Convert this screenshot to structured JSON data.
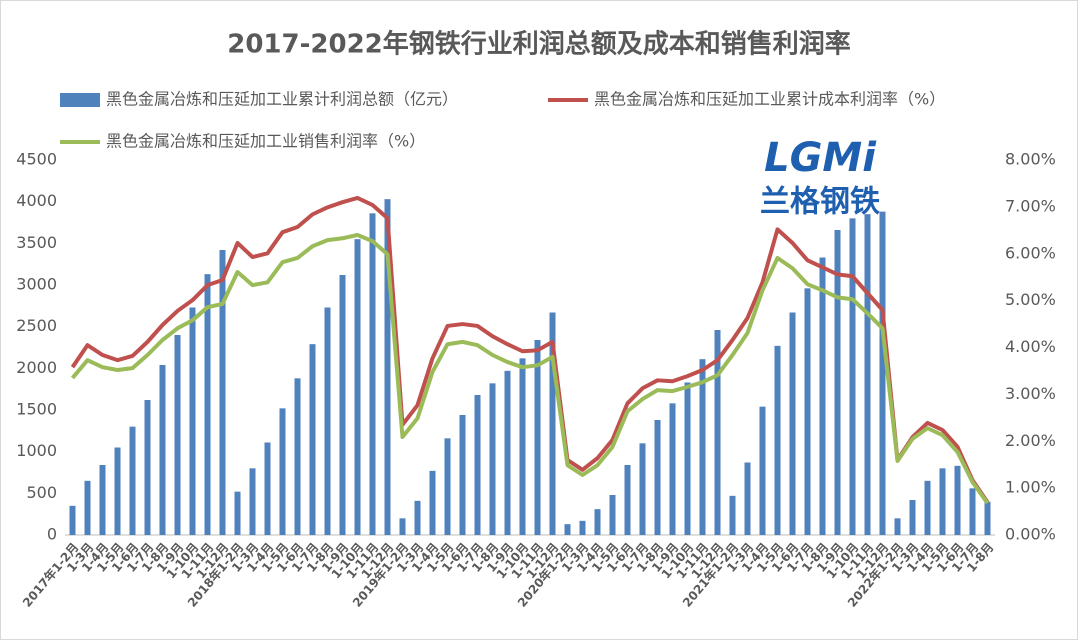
{
  "chart_data": {
    "type": "combo",
    "title": "2017-2022年钢铁行业利润总额及成本和销售利润率",
    "annotations": [
      "LGMi",
      "兰格钢铁"
    ],
    "legend": "top",
    "grid": false,
    "categories": [
      "2017年1-2月",
      "1-3月",
      "1-4月",
      "1-5月",
      "1-6月",
      "1-7月",
      "1-8月",
      "1-9月",
      "1-10月",
      "1-11月",
      "1-12月",
      "2018年1-2月",
      "1-3月",
      "1-4月",
      "1-5月",
      "1-6月",
      "1-7月",
      "1-8月",
      "1-9月",
      "1-10月",
      "1-11月",
      "1-12月",
      "2019年1-2月",
      "1-3月",
      "1-4月",
      "1-5月",
      "1-6月",
      "1-7月",
      "1-8月",
      "1-9月",
      "1-10月",
      "1-11月",
      "1-12月",
      "2020年1-2月",
      "1-3月",
      "1-4月",
      "1-5月",
      "1-6月",
      "1-7月",
      "1-8月",
      "1-9月",
      "1-10月",
      "1-11月",
      "1-12月",
      "2021年1-2月",
      "1-3月",
      "1-4月",
      "1-5月",
      "1-6月",
      "1-7月",
      "1-8月",
      "1-9月",
      "1-10月",
      "1-11月",
      "1-12月",
      "2022年1-2月",
      "1-3月",
      "1-4月",
      "1-5月",
      "1-6月",
      "1-7月",
      "1-8月"
    ],
    "series": [
      {
        "name": "黑色金属冶炼和压延加工业累计利润总额（亿元）",
        "type": "bar",
        "color": "#4f81bd",
        "values": [
          350,
          650,
          840,
          1050,
          1300,
          1620,
          2040,
          2400,
          2730,
          3130,
          3420,
          520,
          800,
          1110,
          1520,
          1880,
          2290,
          2730,
          3120,
          3550,
          3860,
          4030,
          200,
          410,
          770,
          1160,
          1440,
          1680,
          1820,
          1970,
          2120,
          2340,
          2670,
          130,
          170,
          310,
          480,
          840,
          1100,
          1380,
          1580,
          1830,
          2110,
          2460,
          470,
          870,
          1540,
          2270,
          2670,
          2960,
          3330,
          3660,
          3800,
          3850,
          3880,
          200,
          420,
          650,
          800,
          830,
          560,
          400
        ]
      },
      {
        "name": "黑色金属冶炼和压延加工业累计成本利润率（%）",
        "type": "line",
        "axis": "y2",
        "color": "#c0504d",
        "values": [
          3.58,
          4.05,
          3.84,
          3.73,
          3.82,
          4.12,
          4.48,
          4.78,
          5.01,
          5.33,
          5.44,
          6.23,
          5.93,
          6.01,
          6.46,
          6.57,
          6.84,
          6.99,
          7.1,
          7.19,
          7.04,
          6.76,
          2.35,
          2.77,
          3.77,
          4.46,
          4.5,
          4.46,
          4.24,
          4.07,
          3.92,
          3.94,
          4.12,
          1.6,
          1.39,
          1.64,
          2.03,
          2.81,
          3.13,
          3.3,
          3.28,
          3.39,
          3.52,
          3.73,
          4.16,
          4.63,
          5.39,
          6.52,
          6.23,
          5.86,
          5.71,
          5.56,
          5.52,
          5.16,
          4.8,
          1.6,
          2.09,
          2.39,
          2.24,
          1.88,
          1.17,
          0.7
        ]
      },
      {
        "name": "黑色金属冶炼和压延加工业销售利润率（%）",
        "type": "line",
        "axis": "y2",
        "color": "#9bbb59",
        "values": [
          3.35,
          3.73,
          3.58,
          3.52,
          3.56,
          3.84,
          4.16,
          4.41,
          4.58,
          4.86,
          4.93,
          5.61,
          5.33,
          5.39,
          5.82,
          5.91,
          6.16,
          6.29,
          6.33,
          6.4,
          6.27,
          5.99,
          2.09,
          2.49,
          3.48,
          4.07,
          4.12,
          4.05,
          3.84,
          3.69,
          3.58,
          3.62,
          3.8,
          1.49,
          1.28,
          1.49,
          1.88,
          2.64,
          2.9,
          3.09,
          3.07,
          3.16,
          3.26,
          3.41,
          3.84,
          4.31,
          5.22,
          5.91,
          5.69,
          5.35,
          5.22,
          5.07,
          5.03,
          4.73,
          4.41,
          1.58,
          2.05,
          2.28,
          2.13,
          1.77,
          1.13,
          0.68
        ]
      }
    ],
    "ylim": [
      0,
      4500
    ],
    "yticks": [
      0,
      500,
      1000,
      1500,
      2000,
      2500,
      3000,
      3500,
      4000,
      4500
    ],
    "y2lim": [
      0,
      8
    ],
    "y2ticks": [
      {
        "value": 0,
        "label": "0.00%"
      },
      {
        "value": 1,
        "label": "1.00%"
      },
      {
        "value": 2,
        "label": "2.00%"
      },
      {
        "value": 3,
        "label": "3.00%"
      },
      {
        "value": 4,
        "label": "4.00%"
      },
      {
        "value": 5,
        "label": "5.00%"
      },
      {
        "value": 6,
        "label": "6.00%"
      },
      {
        "value": 7,
        "label": "7.00%"
      },
      {
        "value": 8,
        "label": "8.00%"
      }
    ]
  }
}
